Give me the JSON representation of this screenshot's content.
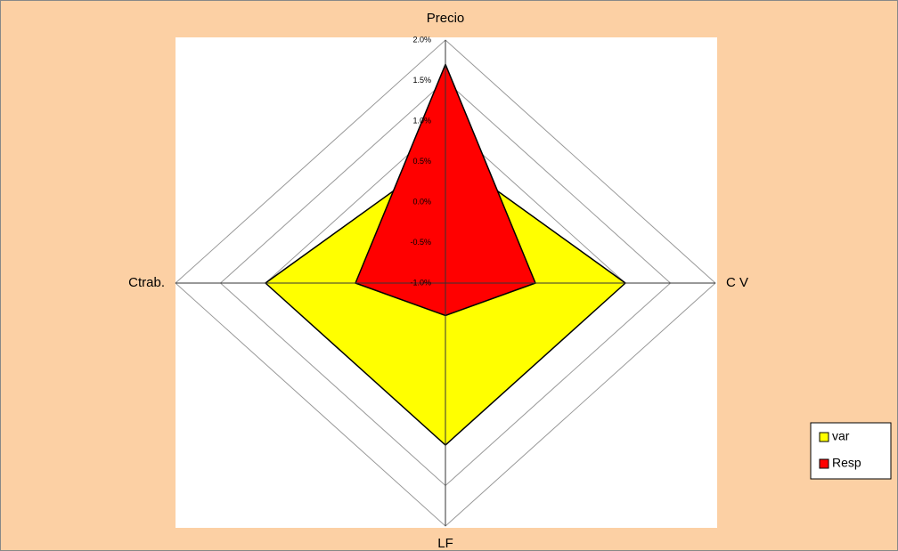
{
  "chart_data": {
    "type": "radar",
    "categories": [
      "Precio",
      "C V",
      "LF",
      "Ctrab."
    ],
    "series": [
      {
        "name": "var",
        "color": "#ffff00",
        "values": [
          0.6,
          1.0,
          1.0,
          1.0
        ]
      },
      {
        "name": "Resp",
        "color": "#ff0000",
        "values": [
          1.7,
          0.0,
          -0.6,
          0.0
        ]
      }
    ],
    "ylim": [
      -1,
      2
    ],
    "yticks": [
      {
        "value": -1,
        "label": "-1.0%"
      },
      {
        "value": -0.5,
        "label": "-0.5%"
      },
      {
        "value": 0,
        "label": "0.0%"
      },
      {
        "value": 0.5,
        "label": "0.5%"
      },
      {
        "value": 1,
        "label": "1.0%"
      },
      {
        "value": 1.5,
        "label": "1.5%"
      },
      {
        "value": 2,
        "label": "2.0%"
      }
    ],
    "grid": true,
    "legend": "right"
  }
}
